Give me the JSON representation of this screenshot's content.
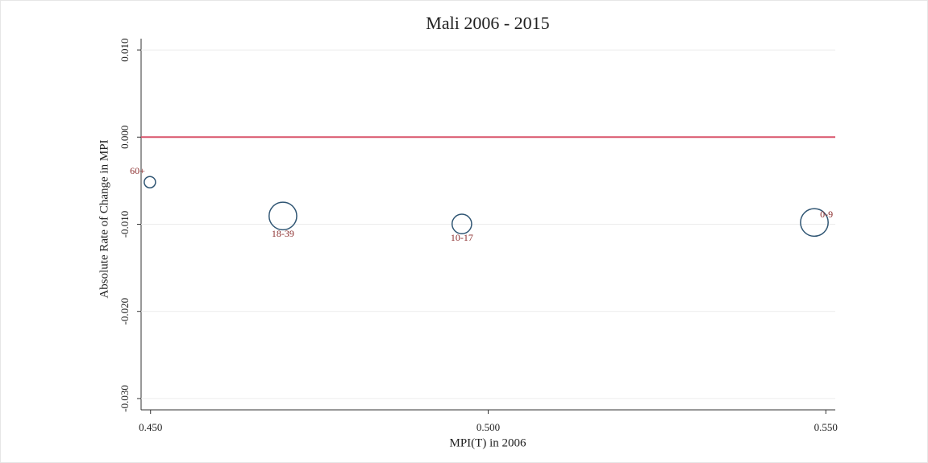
{
  "chart_data": {
    "type": "bubble",
    "title": "Mali 2006 - 2015",
    "x_label": "MPI(T) in 2006",
    "y_label": "Absolute Rate of Change in MPI",
    "x": [
      0.4499,
      0.4696,
      0.4961,
      0.5483
    ],
    "values": [
      -0.00517,
      -0.00905,
      -0.00997,
      -0.00979
    ],
    "sizes": [
      1,
      6,
      3,
      6
    ],
    "point_labels": [
      "60+",
      "18-39",
      "10-17",
      "0-9"
    ],
    "label_positions": [
      "nw",
      "s",
      "s",
      "e"
    ],
    "color": "#2f5573",
    "label_color": "#8b2d2d",
    "hline": 0,
    "hline_color": "#d9536a",
    "xlim": [
      0.4486,
      0.5514
    ],
    "ylim": [
      -0.0313,
      0.0113
    ],
    "xticks": [
      {
        "value": 0.45,
        "label": "0.450"
      },
      {
        "value": 0.5,
        "label": "0.500"
      },
      {
        "value": 0.55,
        "label": "0.550"
      }
    ],
    "yticks": [
      {
        "value": -0.03,
        "label": "-0.030"
      },
      {
        "value": -0.02,
        "label": "-0.020"
      },
      {
        "value": -0.01,
        "label": "-0.010"
      },
      {
        "value": 0,
        "label": "0.000"
      },
      {
        "value": 0.01,
        "label": "0.010"
      }
    ],
    "grid": true
  }
}
